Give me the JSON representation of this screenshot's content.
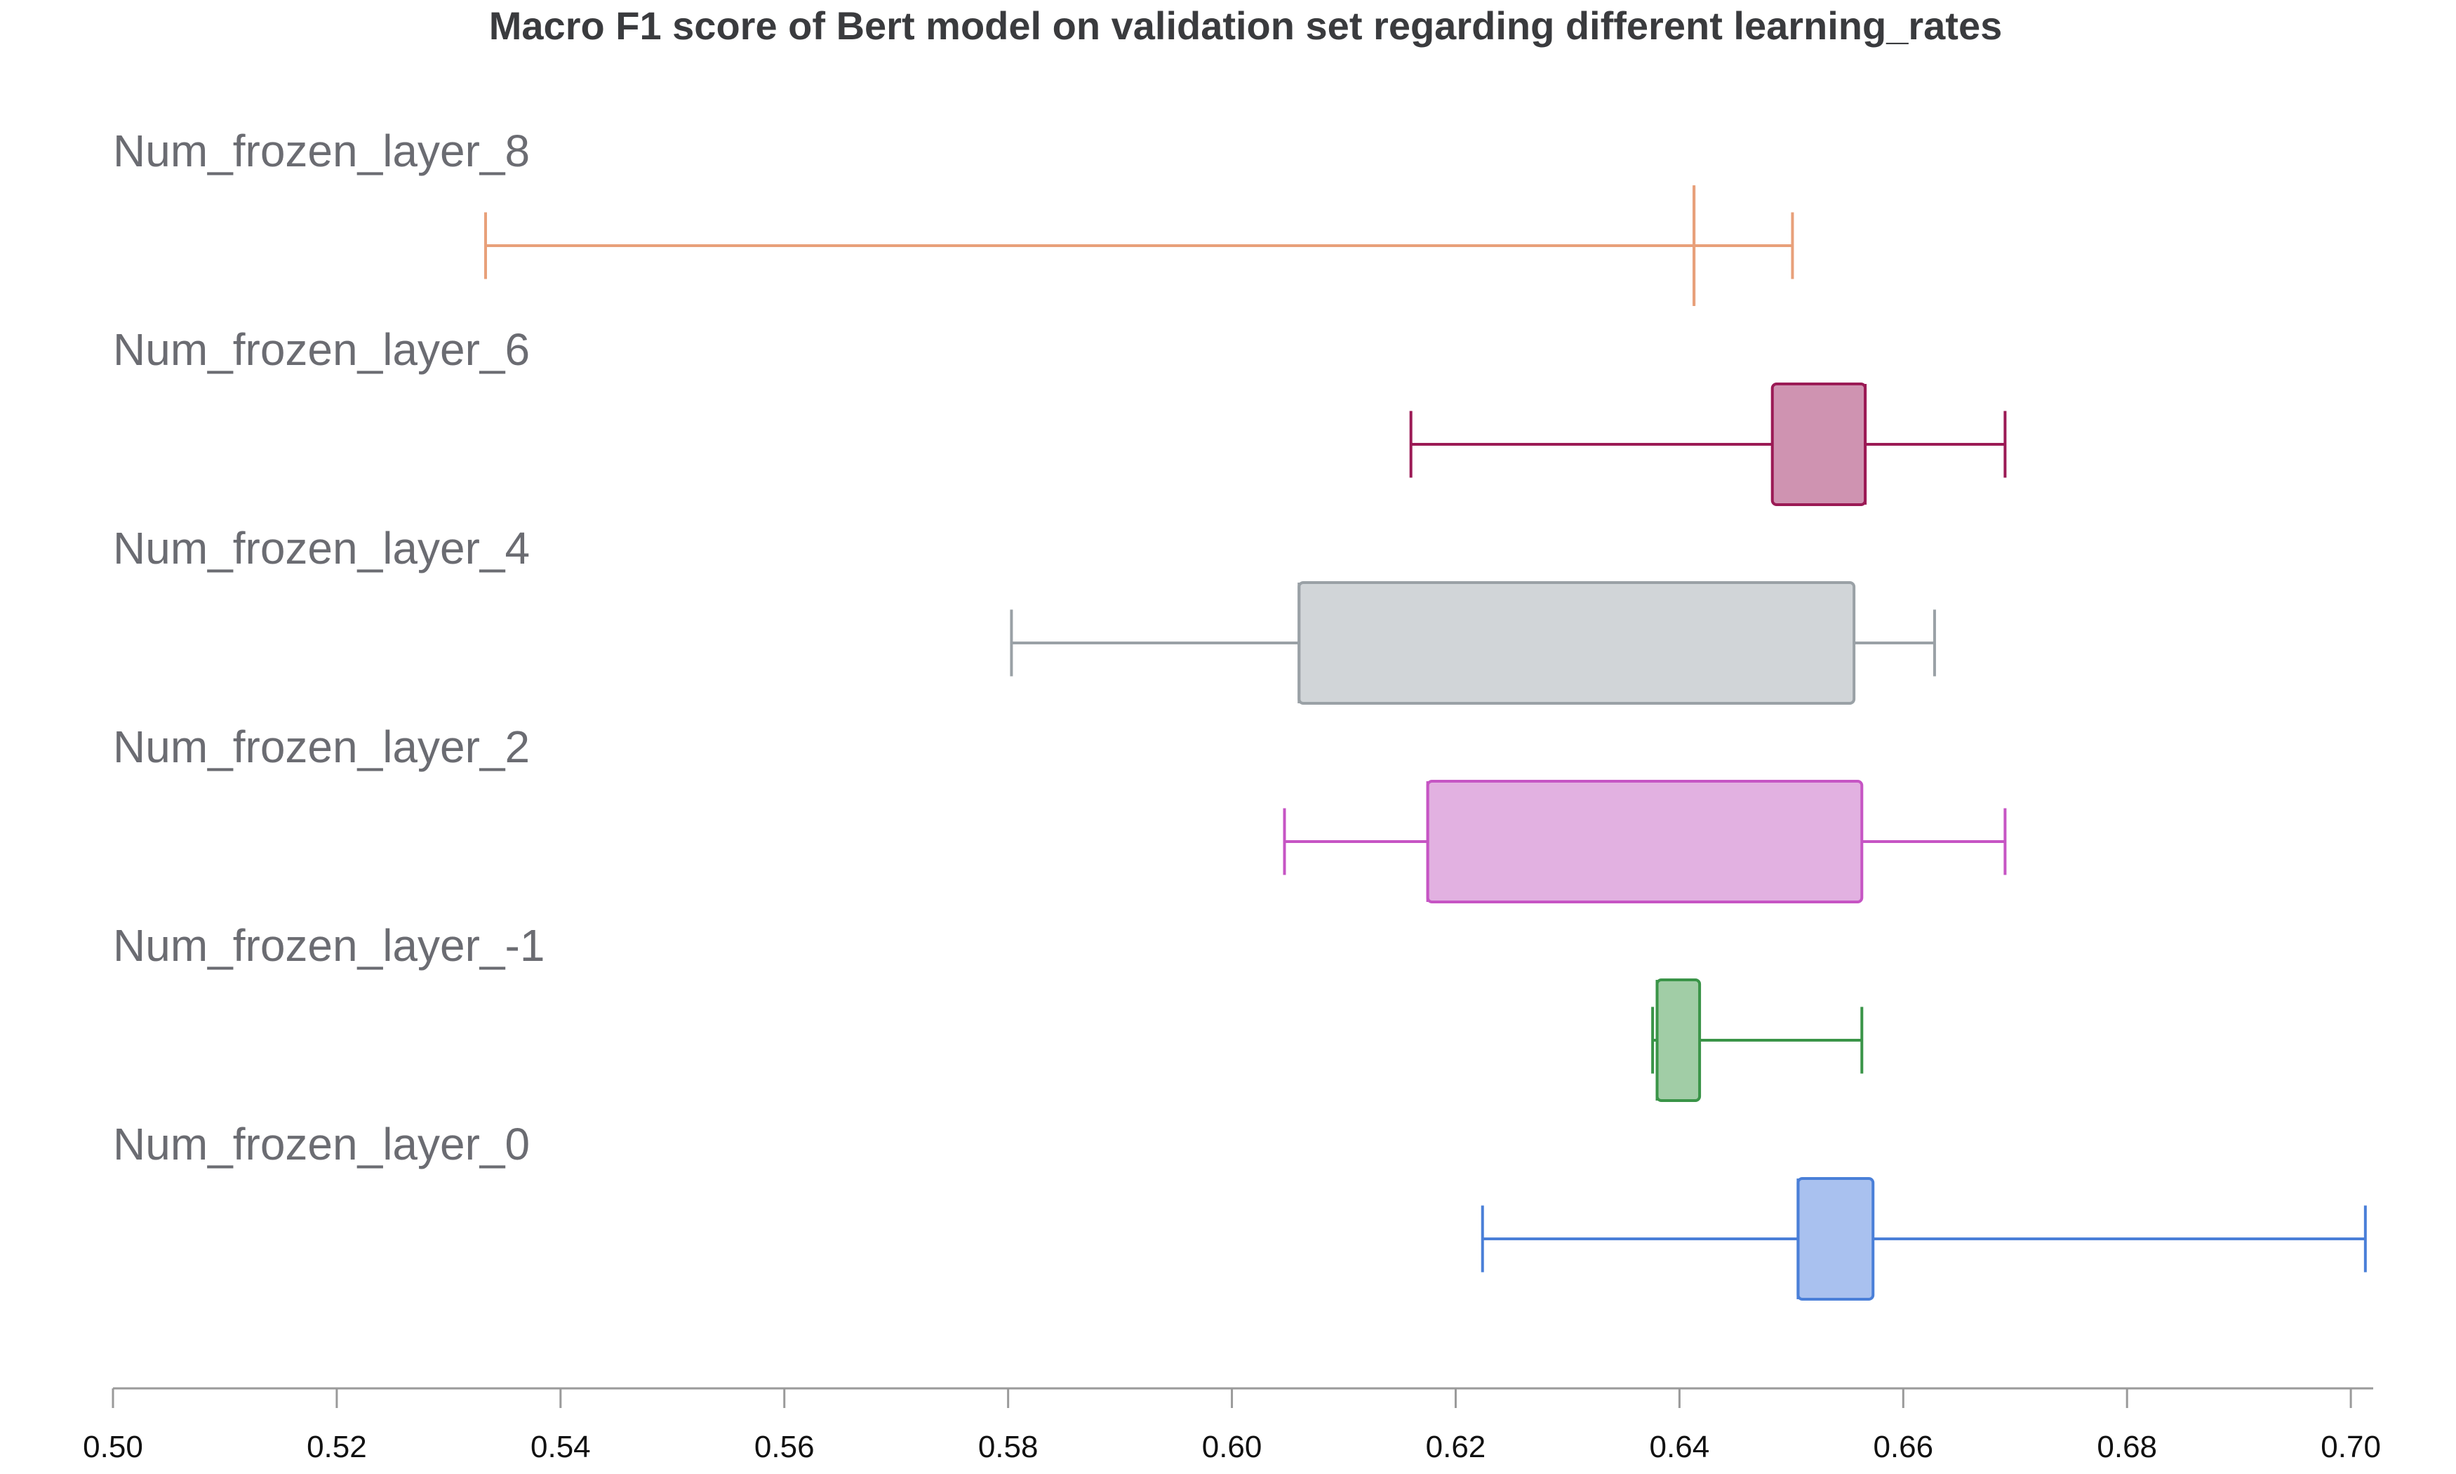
{
  "chart_data": {
    "type": "boxplot",
    "orientation": "horizontal",
    "title": "Macro F1 score of Bert model on validation set regarding different learning_rates",
    "xlabel": "",
    "ylabel": "",
    "xlim": [
      0.5,
      0.702
    ],
    "xticks": [
      "0.50",
      "0.52",
      "0.54",
      "0.56",
      "0.58",
      "0.60",
      "0.62",
      "0.64",
      "0.66",
      "0.68",
      "0.70"
    ],
    "grid": false,
    "series": [
      {
        "name": "Num_frozen_layer_8",
        "color": "#e8a07a",
        "fill": "none",
        "min": 0.5333,
        "q1": 0.6413,
        "median": 0.6413,
        "q3": 0.6413,
        "max": 0.6501
      },
      {
        "name": "Num_frozen_layer_6",
        "color": "#9b1a55",
        "fill": "#cf93b1",
        "min": 0.616,
        "q1": 0.6483,
        "median": 0.6566,
        "q3": 0.6566,
        "max": 0.6691
      },
      {
        "name": "Num_frozen_layer_4",
        "color": "#9aa1a6",
        "fill": "#d1d5d8",
        "min": 0.5803,
        "q1": 0.606,
        "median": 0.606,
        "q3": 0.6556,
        "max": 0.6628
      },
      {
        "name": "Num_frozen_layer_2",
        "color": "#c655c4",
        "fill": "#e2b1e1",
        "min": 0.6047,
        "q1": 0.6175,
        "median": 0.6175,
        "q3": 0.6563,
        "max": 0.6691
      },
      {
        "name": "Num_frozen_layer_-1",
        "color": "#3a9448",
        "fill": "#a1cda6",
        "min": 0.6376,
        "q1": 0.638,
        "median": 0.638,
        "q3": 0.6418,
        "max": 0.6563
      },
      {
        "name": "Num_frozen_layer_0",
        "color": "#4a7fd8",
        "fill": "#a9c1ef",
        "min": 0.6224,
        "q1": 0.6506,
        "median": 0.6506,
        "q3": 0.6573,
        "max": 0.7013
      }
    ]
  }
}
